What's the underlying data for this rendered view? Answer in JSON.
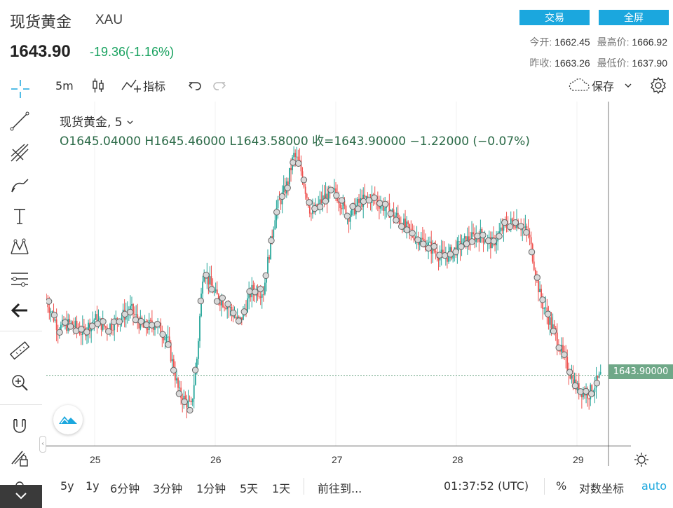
{
  "header": {
    "title": "现货黄金",
    "symbol": "XAU",
    "price": "1643.90",
    "change": "-19.36(-1.16%)",
    "trade_button": "交易",
    "fullscreen_button": "全屏",
    "open_label": "今开:",
    "open_value": "1662.45",
    "high_label": "最高价:",
    "high_value": "1666.92",
    "prev_close_label": "昨收:",
    "prev_close_value": "1663.26",
    "low_label": "最低价:",
    "low_value": "1637.90"
  },
  "toolbar": {
    "interval": "5m",
    "indicators": "指标",
    "save": "保存"
  },
  "legend": {
    "name": "现货黄金, 5",
    "ohlc": "O1645.04000   H1645.46000   L1643.58000   收=1643.90000   −1.22000 (−0.07%)"
  },
  "price_label": "1643.90000",
  "x_ticks": [
    "25",
    "26",
    "27",
    "28",
    "29"
  ],
  "bottom": {
    "r5y": "5y",
    "r1y": "1y",
    "r6m": "6分钟",
    "r3m": "3分钟",
    "r1m": "1分钟",
    "r5d": "5天",
    "r1d": "1天",
    "goto": "前往到...",
    "time": "01:37:52 (UTC)",
    "percent": "%",
    "log": "对数坐标",
    "auto": "auto"
  },
  "colors": {
    "accent": "#1ba7de",
    "up": "#26a69a",
    "down": "#ef5350",
    "change": "#1aa260"
  },
  "chart_data": {
    "type": "line",
    "x": [
      "24.6",
      "24.7",
      "24.8",
      "24.9",
      "25.0",
      "25.1",
      "25.2",
      "25.3",
      "25.4",
      "25.5",
      "25.6",
      "25.7",
      "25.8",
      "25.85",
      "25.9",
      "26.0",
      "26.1",
      "26.2",
      "26.3",
      "26.4",
      "26.5",
      "26.6",
      "26.65",
      "26.7",
      "26.8",
      "26.9",
      "27.0",
      "27.1",
      "27.2",
      "27.3",
      "27.4",
      "27.5",
      "27.6",
      "27.7",
      "27.8",
      "27.9",
      "28.0",
      "28.1",
      "28.2",
      "28.3",
      "28.4",
      "28.5",
      "28.6",
      "28.7",
      "28.8",
      "28.9",
      "29.0",
      "29.1",
      "29.2"
    ],
    "values": [
      1660,
      1654,
      1655,
      1653,
      1656,
      1654,
      1656,
      1658,
      1654,
      1655,
      1652,
      1640,
      1637,
      1648,
      1667,
      1661,
      1659,
      1655,
      1662,
      1662,
      1679,
      1685,
      1691,
      1689,
      1678,
      1682,
      1683,
      1678,
      1681,
      1682,
      1680,
      1678,
      1675,
      1673,
      1671,
      1669,
      1671,
      1673,
      1674,
      1672,
      1676,
      1677,
      1674,
      1660,
      1654,
      1647,
      1641,
      1640,
      1643.9
    ],
    "ylim": [
      1635,
      1695
    ]
  }
}
